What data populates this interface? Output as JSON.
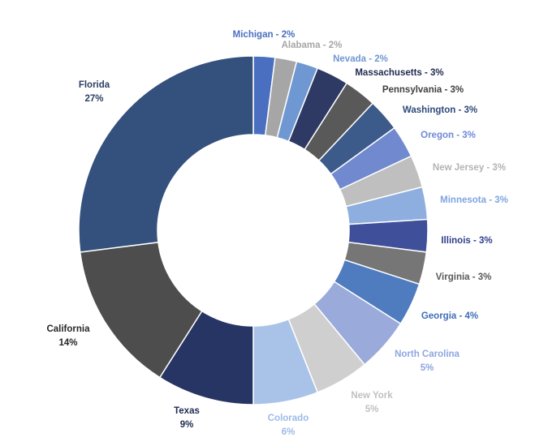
{
  "chart_data": {
    "type": "pie",
    "variant": "donut",
    "title": "",
    "legend": "none",
    "slices": [
      {
        "name": "Michigan",
        "label": "Michigan - 2%",
        "value": 2,
        "color": "#4a6fc1",
        "label_color": "#4a6fc1"
      },
      {
        "name": "Alabama",
        "label": "Alabama - 2%",
        "value": 2,
        "color": "#a6a6a6",
        "label_color": "#a6a6a6"
      },
      {
        "name": "Nevada",
        "label": "Nevada - 2%",
        "value": 2,
        "color": "#6f98d3",
        "label_color": "#6f98d3"
      },
      {
        "name": "Massachusetts",
        "label": "Massachusetts - 3%",
        "value": 3,
        "color": "#2e3a64",
        "label_color": "#1f2a4f"
      },
      {
        "name": "Pennsylvania",
        "label": "Pennsylvania - 3%",
        "value": 3,
        "color": "#595959",
        "label_color": "#404040"
      },
      {
        "name": "Washington",
        "label": "Washington - 3%",
        "value": 3,
        "color": "#3c5a8a",
        "label_color": "#2e4a7a"
      },
      {
        "name": "Oregon",
        "label": "Oregon - 3%",
        "value": 3,
        "color": "#7089cf",
        "label_color": "#6f89d6"
      },
      {
        "name": "New Jersey",
        "label": "New Jersey - 3%",
        "value": 3,
        "color": "#bfbfbf",
        "label_color": "#b3b3b3"
      },
      {
        "name": "Minnesota",
        "label": "Minnesota - 3%",
        "value": 3,
        "color": "#8eaedf",
        "label_color": "#7fa5df"
      },
      {
        "name": "Illinois",
        "label": "Illinois - 3%",
        "value": 3,
        "color": "#3f4f9a",
        "label_color": "#2f3f8a"
      },
      {
        "name": "Virginia",
        "label": "Virginia - 3%",
        "value": 3,
        "color": "#767676",
        "label_color": "#595959"
      },
      {
        "name": "Georgia",
        "label": "Georgia - 4%",
        "value": 4,
        "color": "#4f7bbf",
        "label_color": "#3f6db8"
      },
      {
        "name": "North Carolina",
        "label": "North Carolina",
        "label2": "5%",
        "value": 5,
        "color": "#9aaadb",
        "label_color": "#8ea6e0"
      },
      {
        "name": "New York",
        "label": "New York",
        "label2": "5%",
        "value": 5,
        "color": "#cfcfcf",
        "label_color": "#c0c0c0"
      },
      {
        "name": "Colorado",
        "label": "Colorado",
        "label2": "6%",
        "value": 6,
        "color": "#a9c3e8",
        "label_color": "#9bbbe8"
      },
      {
        "name": "Texas",
        "label": "Texas",
        "label2": "9%",
        "value": 9,
        "color": "#263563",
        "label_color": "#1f2a4f"
      },
      {
        "name": "California",
        "label": "California",
        "label2": "14%",
        "value": 14,
        "color": "#4d4d4d",
        "label_color": "#262626"
      },
      {
        "name": "Florida",
        "label": "Florida",
        "label2": "27%",
        "value": 27,
        "color": "#34507c",
        "label_color": "#2b3f63"
      }
    ]
  }
}
